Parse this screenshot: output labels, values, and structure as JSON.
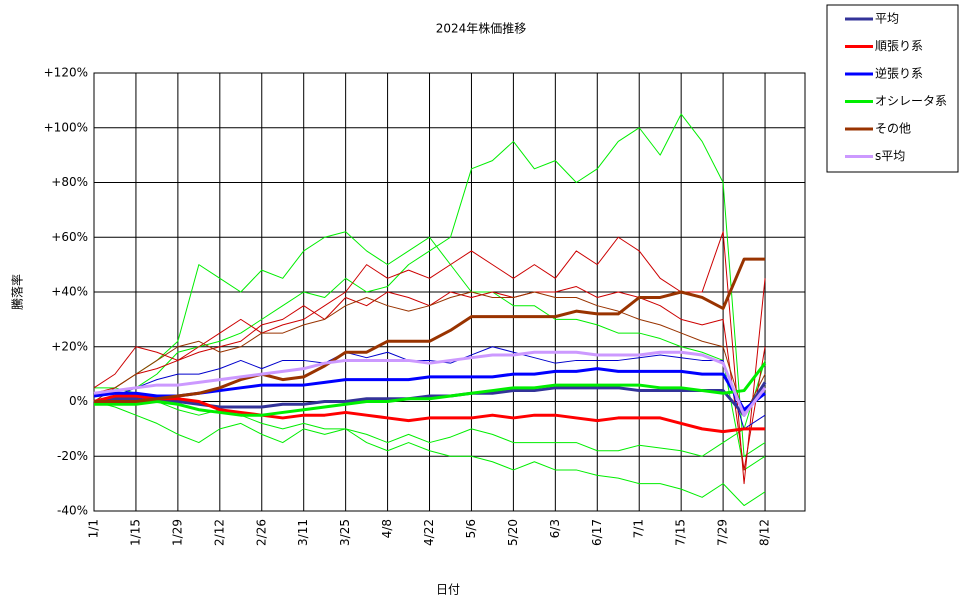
{
  "chart_data": {
    "type": "line",
    "title": "2024年株価推移",
    "x_label": "日付",
    "y_label": "騰落率",
    "categories": [
      "1/1",
      null,
      "1/15",
      null,
      "1/29",
      null,
      "2/12",
      null,
      "2/26",
      null,
      "3/11",
      null,
      "3/25",
      null,
      "4/8",
      null,
      "4/22",
      null,
      "5/6",
      null,
      "5/20",
      null,
      "6/3",
      null,
      "6/17",
      null,
      "7/1",
      null,
      "7/15",
      null,
      "7/29",
      null,
      "8/12"
    ],
    "ylim": [
      -40,
      120
    ],
    "yticks": [
      {
        "value": -40,
        "label": "-40%"
      },
      {
        "value": -20,
        "label": "-20%"
      },
      {
        "value": 0,
        "label": "0%"
      },
      {
        "value": 20,
        "label": "+20%"
      },
      {
        "value": 40,
        "label": "+40%"
      },
      {
        "value": 60,
        "label": "+60%"
      },
      {
        "value": 80,
        "label": "+80%"
      },
      {
        "value": 100,
        "label": "+100%"
      },
      {
        "value": 120,
        "label": "+120%"
      }
    ],
    "grid": true,
    "legend": "outside-top-right",
    "series": [
      {
        "color": "#00ee00",
        "width": 1,
        "values": [
          0,
          2,
          5,
          10,
          18,
          20,
          22,
          25,
          30,
          35,
          40,
          38,
          45,
          40,
          42,
          50,
          55,
          60,
          85,
          88,
          95,
          85,
          88,
          80,
          85,
          95,
          100,
          90,
          105,
          95,
          80,
          -20,
          -15
        ]
      },
      {
        "color": "#00ee00",
        "width": 1,
        "values": [
          0,
          5,
          10,
          15,
          22,
          50,
          45,
          40,
          48,
          45,
          55,
          60,
          62,
          55,
          50,
          55,
          60,
          50,
          40,
          40,
          35,
          35,
          30,
          30,
          28,
          25,
          25,
          23,
          20,
          18,
          15,
          -25,
          -20
        ]
      },
      {
        "color": "#00ee00",
        "width": 1,
        "values": [
          0,
          -2,
          -5,
          -8,
          -12,
          -15,
          -10,
          -8,
          -12,
          -15,
          -10,
          -12,
          -10,
          -15,
          -18,
          -15,
          -18,
          -20,
          -20,
          -22,
          -25,
          -22,
          -25,
          -25,
          -27,
          -28,
          -30,
          -30,
          -32,
          -35,
          -30,
          -38,
          -33
        ]
      },
      {
        "color": "#00ee00",
        "width": 1,
        "values": [
          5,
          5,
          3,
          0,
          -3,
          -5,
          -3,
          -5,
          -8,
          -10,
          -8,
          -10,
          -10,
          -12,
          -15,
          -12,
          -15,
          -13,
          -10,
          -12,
          -15,
          -15,
          -15,
          -15,
          -18,
          -18,
          -16,
          -17,
          -18,
          -20,
          -15,
          -10,
          15
        ]
      },
      {
        "color": "#cc0000",
        "width": 1,
        "values": [
          5,
          10,
          20,
          18,
          15,
          20,
          25,
          30,
          25,
          28,
          30,
          35,
          40,
          50,
          45,
          48,
          45,
          50,
          55,
          50,
          45,
          50,
          45,
          55,
          50,
          60,
          55,
          45,
          40,
          40,
          62,
          -30,
          45
        ]
      },
      {
        "color": "#cc0000",
        "width": 1,
        "values": [
          3,
          5,
          10,
          12,
          15,
          18,
          20,
          22,
          28,
          30,
          35,
          30,
          38,
          35,
          40,
          38,
          35,
          40,
          38,
          40,
          38,
          40,
          40,
          42,
          38,
          40,
          38,
          35,
          30,
          28,
          30,
          -25,
          20
        ]
      },
      {
        "color": "#0000cc",
        "width": 1,
        "values": [
          0,
          2,
          5,
          8,
          10,
          10,
          12,
          15,
          12,
          15,
          15,
          14,
          18,
          16,
          18,
          15,
          15,
          14,
          17,
          20,
          18,
          16,
          14,
          15,
          15,
          15,
          16,
          17,
          16,
          15,
          15,
          -10,
          -5
        ]
      },
      {
        "color": "#993300",
        "width": 1,
        "values": [
          0,
          5,
          10,
          15,
          20,
          22,
          18,
          20,
          25,
          25,
          28,
          30,
          35,
          38,
          35,
          33,
          35,
          38,
          40,
          38,
          38,
          40,
          38,
          38,
          35,
          33,
          30,
          28,
          25,
          22,
          20,
          -5,
          10
        ]
      },
      {
        "name": "平均",
        "color": "#333399",
        "width": 3,
        "values": [
          0,
          1,
          1,
          0,
          0,
          -1,
          -2,
          -2,
          -2,
          -1,
          -1,
          0,
          0,
          1,
          1,
          1,
          2,
          2,
          3,
          3,
          4,
          4,
          5,
          5,
          5,
          5,
          4,
          4,
          4,
          4,
          4,
          -5,
          7
        ]
      },
      {
        "name": "順張り系",
        "color": "#ff0000",
        "width": 3,
        "values": [
          0,
          2,
          2,
          1,
          1,
          0,
          -3,
          -4,
          -5,
          -6,
          -5,
          -5,
          -4,
          -5,
          -6,
          -7,
          -6,
          -6,
          -6,
          -5,
          -6,
          -5,
          -5,
          -6,
          -7,
          -6,
          -6,
          -6,
          -8,
          -10,
          -11,
          -10,
          -10
        ]
      },
      {
        "name": "逆張り系",
        "color": "#0000ff",
        "width": 3,
        "values": [
          2,
          3,
          3,
          2,
          2,
          3,
          4,
          5,
          6,
          6,
          6,
          7,
          8,
          8,
          8,
          8,
          9,
          9,
          9,
          9,
          10,
          10,
          11,
          11,
          12,
          11,
          11,
          11,
          11,
          10,
          10,
          -3,
          3
        ]
      },
      {
        "name": "オシレータ系",
        "color": "#00ee00",
        "width": 3,
        "values": [
          -1,
          -1,
          -1,
          0,
          -1,
          -3,
          -4,
          -5,
          -5,
          -4,
          -3,
          -2,
          -1,
          0,
          0,
          1,
          1,
          2,
          3,
          4,
          5,
          5,
          6,
          6,
          6,
          6,
          6,
          5,
          5,
          4,
          3,
          4,
          14
        ]
      },
      {
        "name": "その他",
        "color": "#993300",
        "width": 3,
        "values": [
          0,
          0,
          0,
          1,
          2,
          3,
          5,
          8,
          10,
          8,
          9,
          13,
          18,
          18,
          22,
          22,
          22,
          26,
          31,
          31,
          31,
          31,
          31,
          33,
          32,
          32,
          38,
          38,
          40,
          38,
          34,
          52,
          52
        ]
      },
      {
        "name": "s平均",
        "color": "#cc99ff",
        "width": 3,
        "values": [
          3,
          4,
          5,
          6,
          6,
          7,
          8,
          9,
          10,
          11,
          12,
          14,
          15,
          15,
          15,
          15,
          14,
          15,
          16,
          17,
          17,
          18,
          18,
          18,
          17,
          17,
          17,
          18,
          18,
          17,
          14,
          -5,
          5
        ]
      }
    ]
  }
}
